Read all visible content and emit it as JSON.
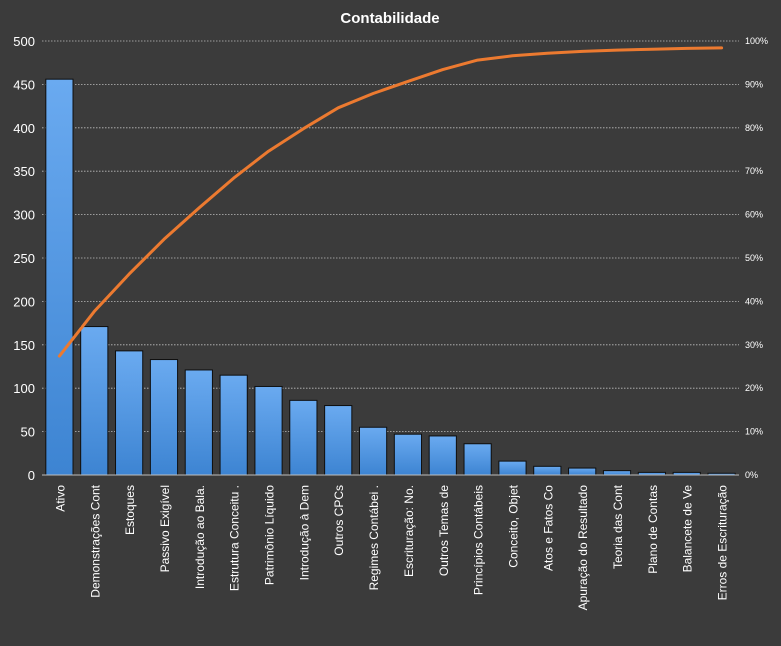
{
  "chart_data": {
    "type": "bar",
    "title": "Contabilidade",
    "xlabel": "",
    "ylabel": "",
    "categories": [
      "Ativo",
      "Demonstrações Cont",
      "Estoques",
      "Passivo Exigível",
      "Introdução  ao Bala.",
      "Estrutura Conceitu .",
      "Patrimônio Líquido",
      "Introdução  à Dem",
      "Outros CPCs",
      "Regimes Contábei .",
      "Escrituração: No.",
      "Outros Temas de",
      "Princípios Contábeis",
      "Conceito, Objet",
      "Atos e Fatos Co",
      "Apuração do Resultado",
      "Teoria das Cont",
      "Plano de Contas",
      "Balancete de Ve",
      "Erros de Escrituração"
    ],
    "series": [
      {
        "type": "bar",
        "values": [
          456,
          171,
          143,
          133,
          121,
          115,
          102,
          86,
          80,
          55,
          47,
          45,
          36,
          16,
          10,
          8,
          5,
          3,
          3,
          2
        ]
      },
      {
        "type": "line",
        "axis": "secondary",
        "values": [
          27.4,
          37.7,
          46.3,
          54.3,
          61.5,
          68.4,
          74.6,
          79.8,
          84.6,
          87.9,
          90.7,
          93.4,
          95.6,
          96.6,
          97.2,
          97.6,
          97.9,
          98.1,
          98.3,
          98.4
        ]
      }
    ],
    "ylim": [
      0,
      500
    ],
    "yticks": [
      0,
      50,
      100,
      150,
      200,
      250,
      300,
      350,
      400,
      450,
      500
    ],
    "y2lim": [
      0,
      100
    ],
    "y2ticks": [
      "0%",
      "10%",
      "20%",
      "30%",
      "40%",
      "50%",
      "60%",
      "70%",
      "80%",
      "90%",
      "100%"
    ],
    "grid": true,
    "legend": "none",
    "colors": {
      "background": "#3b3b3b",
      "bar": "#4a8fd6",
      "line": "#ec7a30",
      "grid": "#bdbdbd",
      "text": "#ffffff"
    }
  }
}
